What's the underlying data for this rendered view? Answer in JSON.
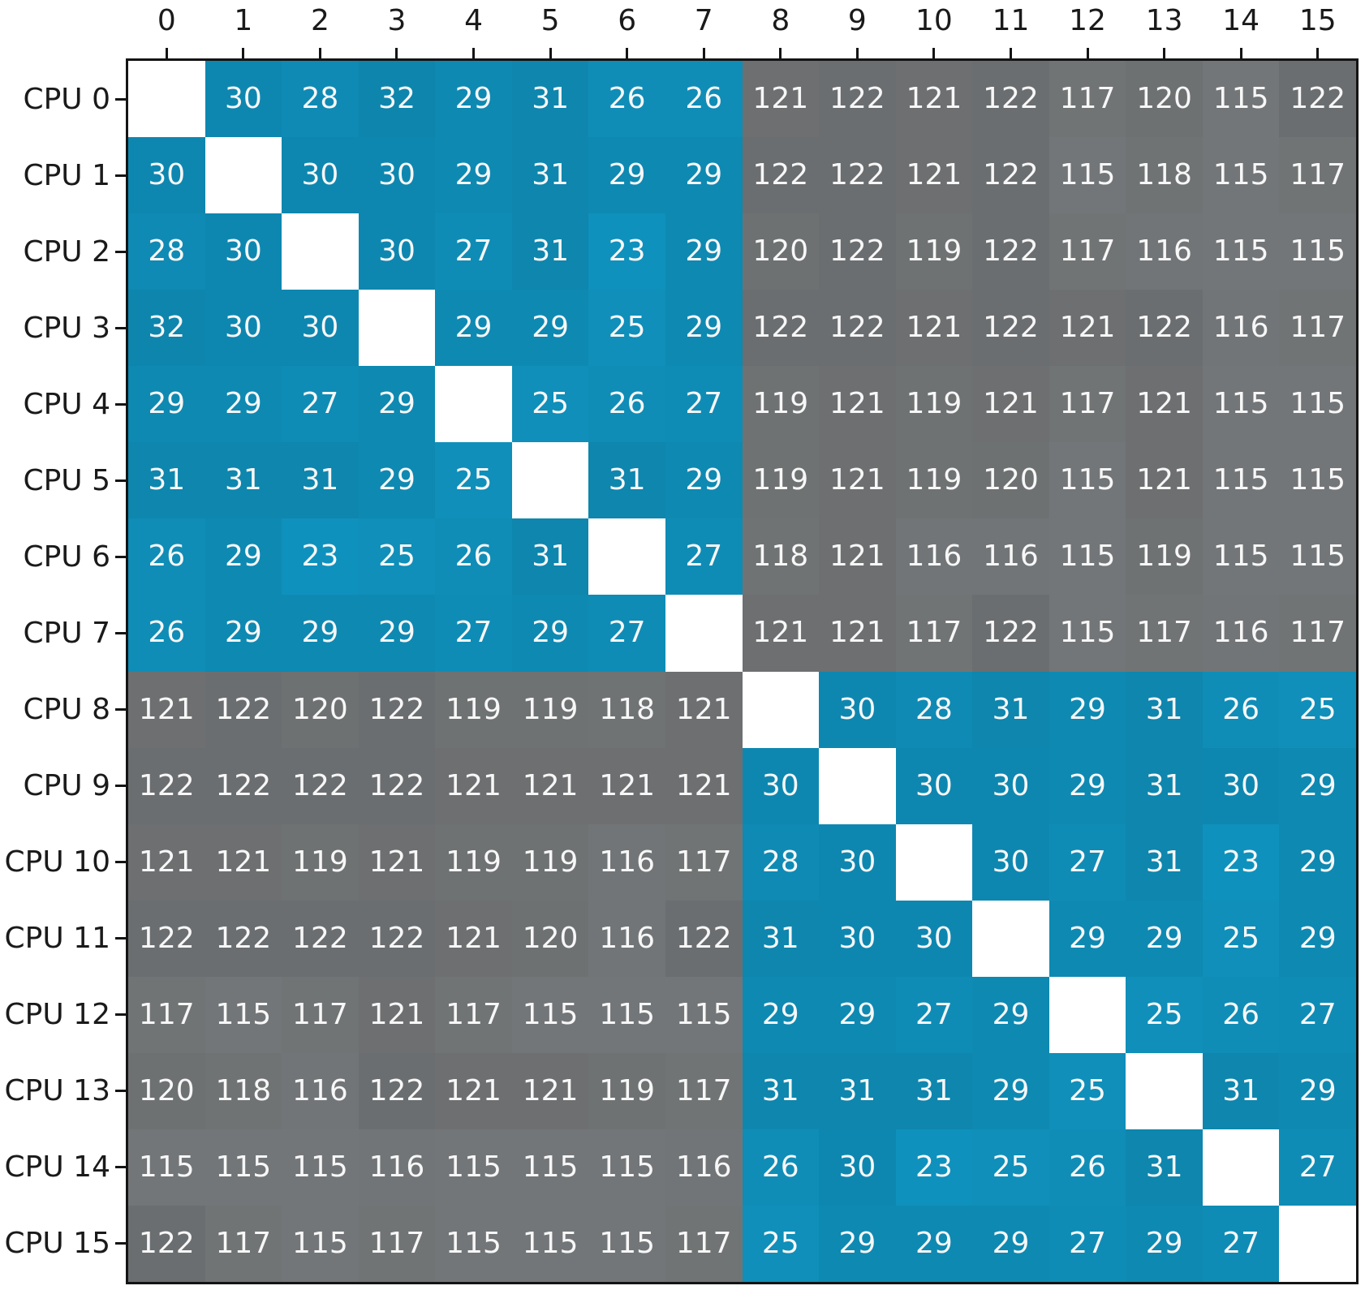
{
  "figure": {
    "background": "#ffffff",
    "axes_border_color": "#141414",
    "tick_color": "#141414",
    "axis_label_color": "#1a1a1a"
  },
  "chart_data": {
    "type": "heatmap",
    "title": "",
    "xlabel": "",
    "ylabel": "",
    "legend": "none",
    "grid": false,
    "col_labels": [
      "0",
      "1",
      "2",
      "3",
      "4",
      "5",
      "6",
      "7",
      "8",
      "9",
      "10",
      "11",
      "12",
      "13",
      "14",
      "15"
    ],
    "row_labels": [
      "CPU 0",
      "CPU 1",
      "CPU 2",
      "CPU 3",
      "CPU 4",
      "CPU 5",
      "CPU 6",
      "CPU 7",
      "CPU 8",
      "CPU 9",
      "CPU 10",
      "CPU 11",
      "CPU 12",
      "CPU 13",
      "CPU 14",
      "CPU 15"
    ],
    "values": [
      [
        null,
        30,
        28,
        32,
        29,
        31,
        26,
        26,
        121,
        122,
        121,
        122,
        117,
        120,
        115,
        122
      ],
      [
        30,
        null,
        30,
        30,
        29,
        31,
        29,
        29,
        122,
        122,
        121,
        122,
        115,
        118,
        115,
        117
      ],
      [
        28,
        30,
        null,
        30,
        27,
        31,
        23,
        29,
        120,
        122,
        119,
        122,
        117,
        116,
        115,
        115
      ],
      [
        32,
        30,
        30,
        null,
        29,
        29,
        25,
        29,
        122,
        122,
        121,
        122,
        121,
        122,
        116,
        117
      ],
      [
        29,
        29,
        27,
        29,
        null,
        25,
        26,
        27,
        119,
        121,
        119,
        121,
        117,
        121,
        115,
        115
      ],
      [
        31,
        31,
        31,
        29,
        25,
        null,
        31,
        29,
        119,
        121,
        119,
        120,
        115,
        121,
        115,
        115
      ],
      [
        26,
        29,
        23,
        25,
        26,
        31,
        null,
        27,
        118,
        121,
        116,
        116,
        115,
        119,
        115,
        115
      ],
      [
        26,
        29,
        29,
        29,
        27,
        29,
        27,
        null,
        121,
        121,
        117,
        122,
        115,
        117,
        116,
        117
      ],
      [
        121,
        122,
        120,
        122,
        119,
        119,
        118,
        121,
        null,
        30,
        28,
        31,
        29,
        31,
        26,
        25
      ],
      [
        122,
        122,
        122,
        122,
        121,
        121,
        121,
        121,
        30,
        null,
        30,
        30,
        29,
        31,
        30,
        29
      ],
      [
        121,
        121,
        119,
        121,
        119,
        119,
        116,
        117,
        28,
        30,
        null,
        30,
        27,
        31,
        23,
        29
      ],
      [
        122,
        122,
        122,
        122,
        121,
        120,
        116,
        122,
        31,
        30,
        30,
        null,
        29,
        29,
        25,
        29
      ],
      [
        117,
        115,
        117,
        121,
        117,
        115,
        115,
        115,
        29,
        29,
        27,
        29,
        null,
        25,
        26,
        27
      ],
      [
        120,
        118,
        116,
        122,
        121,
        121,
        119,
        117,
        31,
        31,
        31,
        29,
        25,
        null,
        31,
        29
      ],
      [
        115,
        115,
        115,
        116,
        115,
        115,
        115,
        116,
        26,
        30,
        23,
        25,
        26,
        31,
        null,
        27
      ],
      [
        122,
        117,
        115,
        117,
        115,
        115,
        115,
        117,
        25,
        29,
        29,
        29,
        27,
        29,
        27,
        null
      ]
    ],
    "value_ranges": {
      "low_block": {
        "min": 23,
        "max": 32
      },
      "high_block": {
        "min": 115,
        "max": 122
      }
    },
    "colors": {
      "low_block": "#0e86ad",
      "high_block": "#6e6e6e",
      "diagonal": "#ffffff",
      "cell_text": "#f7f7f7"
    }
  }
}
